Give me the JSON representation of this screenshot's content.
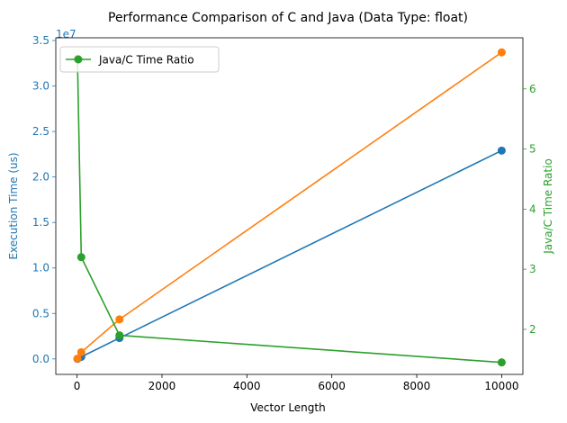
{
  "chart_data": {
    "type": "line",
    "title": "Performance Comparison of C and Java (Data Type: float)",
    "xlabel": "Vector Length",
    "ylabel": "Execution Time (us)",
    "ylabel_right": "Java/C Time Ratio",
    "y_offset_label": "1e7",
    "xlim": [
      -500,
      10500
    ],
    "ylim": [
      -1700000,
      35300000
    ],
    "ylim_right": [
      1.25,
      6.85
    ],
    "x_ticks": [
      0,
      2000,
      4000,
      6000,
      8000,
      10000
    ],
    "x_tick_labels": [
      "0",
      "2000",
      "4000",
      "6000",
      "8000",
      "10000"
    ],
    "y_ticks": [
      0,
      5000000,
      10000000,
      15000000,
      20000000,
      25000000,
      30000000,
      35000000
    ],
    "y_tick_labels": [
      "0.0",
      "0.5",
      "1.0",
      "1.5",
      "2.0",
      "2.5",
      "3.0",
      "3.5"
    ],
    "y_right_ticks": [
      2,
      3,
      4,
      5,
      6
    ],
    "y_right_tick_labels": [
      "2",
      "3",
      "4",
      "5",
      "6"
    ],
    "grid": false,
    "legend_position": "top-left",
    "x": [
      10,
      100,
      1000,
      10000
    ],
    "series": [
      {
        "key": "c_time",
        "axis": "left",
        "color": "#1f77b4",
        "values": [
          5000,
          230000,
          2300000,
          22900000
        ]
      },
      {
        "key": "java_time",
        "axis": "left",
        "color": "#ff7f0e",
        "values": [
          32000,
          740000,
          4350000,
          33700000
        ]
      },
      {
        "name": "Java/C Time Ratio",
        "key": "ratio",
        "axis": "right",
        "color": "#2ca02c",
        "values": [
          6.5,
          3.2,
          1.9,
          1.45
        ]
      }
    ]
  }
}
